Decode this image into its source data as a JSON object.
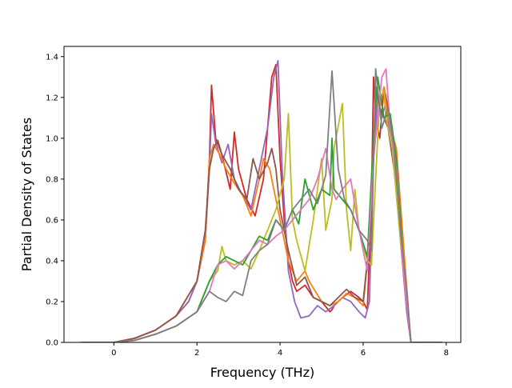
{
  "chart_data": {
    "type": "line",
    "title": "",
    "xlabel": "Frequency (THz)",
    "ylabel": "Partial Density of States",
    "xlim": [
      -1.2,
      8.35
    ],
    "ylim": [
      0.0,
      1.45
    ],
    "xticks": [
      0,
      2,
      4,
      6,
      8
    ],
    "yticks": [
      0.0,
      0.2,
      0.4,
      0.6,
      0.8,
      1.0,
      1.2,
      1.4
    ],
    "xtick_labels": [
      "0",
      "2",
      "4",
      "6",
      "8"
    ],
    "ytick_labels": [
      "0.0",
      "0.2",
      "0.4",
      "0.6",
      "0.8",
      "1.0",
      "1.2",
      "1.4"
    ],
    "grid": false,
    "legend": "none",
    "series": [
      {
        "color": "#d62728",
        "x": [
          -0.8,
          0.0,
          0.5,
          1.0,
          1.5,
          1.8,
          2.0,
          2.2,
          2.3,
          2.35,
          2.45,
          2.6,
          2.8,
          2.9,
          3.0,
          3.2,
          3.4,
          3.6,
          3.8,
          3.85,
          3.9,
          4.0,
          4.1,
          4.2,
          4.3,
          4.4,
          4.6,
          4.8,
          5.0,
          5.2,
          5.25,
          5.3,
          5.5,
          5.7,
          5.9,
          6.0,
          6.1,
          6.2,
          6.25,
          6.3,
          6.4,
          6.5,
          6.6,
          6.7,
          6.9,
          7.05,
          7.15,
          7.3,
          7.9
        ],
        "y": [
          0,
          0,
          0.02,
          0.06,
          0.13,
          0.2,
          0.3,
          0.5,
          0.9,
          1.26,
          1.0,
          0.92,
          0.75,
          1.03,
          0.85,
          0.7,
          0.62,
          0.8,
          1.3,
          1.33,
          1.36,
          0.9,
          0.6,
          0.4,
          0.3,
          0.25,
          0.28,
          0.22,
          0.2,
          0.15,
          0.16,
          0.18,
          0.22,
          0.25,
          0.22,
          0.2,
          0.16,
          0.7,
          1.3,
          1.1,
          1.0,
          1.25,
          1.15,
          1.05,
          0.5,
          0.15,
          0,
          0,
          0
        ]
      },
      {
        "color": "#9467bd",
        "x": [
          -0.8,
          0.0,
          0.5,
          1.0,
          1.5,
          1.8,
          2.0,
          2.2,
          2.3,
          2.35,
          2.45,
          2.6,
          2.75,
          2.9,
          3.1,
          3.3,
          3.5,
          3.7,
          3.85,
          3.95,
          4.05,
          4.2,
          4.35,
          4.5,
          4.7,
          4.9,
          5.1,
          5.3,
          5.5,
          5.7,
          5.9,
          6.05,
          6.15,
          6.25,
          6.35,
          6.45,
          6.55,
          6.65,
          6.8,
          6.95,
          7.05,
          7.15,
          7.3,
          7.9
        ],
        "y": [
          0,
          0,
          0.02,
          0.06,
          0.13,
          0.2,
          0.3,
          0.5,
          0.85,
          1.12,
          0.98,
          0.88,
          0.97,
          0.8,
          0.72,
          0.65,
          0.85,
          1.05,
          1.3,
          1.38,
          0.85,
          0.35,
          0.2,
          0.12,
          0.13,
          0.18,
          0.15,
          0.18,
          0.22,
          0.2,
          0.15,
          0.12,
          0.2,
          0.9,
          1.2,
          1.1,
          1.18,
          1.0,
          0.8,
          0.4,
          0.15,
          0,
          0,
          0
        ]
      },
      {
        "color": "#ff7f0e",
        "x": [
          -0.8,
          0.0,
          0.5,
          1.0,
          1.5,
          2.0,
          2.2,
          2.3,
          2.4,
          2.55,
          2.7,
          2.9,
          3.1,
          3.3,
          3.5,
          3.6,
          3.75,
          3.9,
          4.0,
          4.2,
          4.4,
          4.6,
          4.7,
          4.85,
          5.0,
          5.2,
          5.4,
          5.6,
          5.8,
          6.0,
          6.2,
          6.3,
          6.4,
          6.5,
          6.6,
          6.8,
          7.0,
          7.15,
          7.3,
          7.9
        ],
        "y": [
          0,
          0,
          0.02,
          0.06,
          0.13,
          0.3,
          0.5,
          0.9,
          0.97,
          0.92,
          0.85,
          0.78,
          0.72,
          0.62,
          0.8,
          0.9,
          0.85,
          0.7,
          0.6,
          0.4,
          0.3,
          0.35,
          0.3,
          0.25,
          0.2,
          0.18,
          0.2,
          0.24,
          0.22,
          0.18,
          0.6,
          1.2,
          1.15,
          1.25,
          1.1,
          0.95,
          0.4,
          0,
          0,
          0
        ]
      },
      {
        "color": "#8c564b",
        "x": [
          -0.8,
          0.0,
          0.5,
          1.0,
          1.5,
          2.0,
          2.2,
          2.3,
          2.4,
          2.5,
          2.6,
          2.8,
          3.0,
          3.2,
          3.35,
          3.5,
          3.7,
          3.8,
          3.9,
          4.0,
          4.2,
          4.4,
          4.6,
          4.8,
          5.0,
          5.2,
          5.4,
          5.6,
          5.8,
          6.0,
          6.2,
          6.3,
          6.4,
          6.6,
          6.75,
          6.9,
          7.05,
          7.15,
          7.3,
          7.9
        ],
        "y": [
          0,
          0,
          0.02,
          0.06,
          0.13,
          0.3,
          0.55,
          0.85,
          0.95,
          0.99,
          0.92,
          0.85,
          0.75,
          0.7,
          0.9,
          0.8,
          0.88,
          0.95,
          0.85,
          0.65,
          0.45,
          0.28,
          0.32,
          0.22,
          0.2,
          0.18,
          0.22,
          0.26,
          0.22,
          0.2,
          0.6,
          1.25,
          1.15,
          1.05,
          0.84,
          0.5,
          0.2,
          0,
          0,
          0
        ]
      },
      {
        "color": "#bcbd22",
        "x": [
          -0.8,
          0.0,
          0.5,
          1.0,
          1.5,
          2.0,
          2.3,
          2.5,
          2.6,
          2.7,
          2.9,
          3.1,
          3.3,
          3.5,
          3.7,
          3.9,
          4.1,
          4.2,
          4.3,
          4.4,
          4.6,
          4.8,
          5.0,
          5.1,
          5.2,
          5.25,
          5.3,
          5.5,
          5.6,
          5.7,
          5.8,
          5.9,
          6.1,
          6.2,
          6.3,
          6.4,
          6.5,
          6.55,
          6.7,
          6.9,
          7.05,
          7.15,
          7.3,
          7.9
        ],
        "y": [
          0,
          0,
          0.01,
          0.04,
          0.08,
          0.15,
          0.3,
          0.35,
          0.47,
          0.4,
          0.38,
          0.4,
          0.36,
          0.45,
          0.55,
          0.65,
          0.8,
          1.12,
          0.6,
          0.5,
          0.35,
          0.6,
          0.9,
          0.55,
          0.65,
          0.7,
          0.95,
          1.17,
          0.65,
          0.45,
          0.75,
          0.55,
          0.4,
          0.38,
          0.8,
          1.2,
          1.23,
          1.1,
          0.95,
          0.5,
          0.2,
          0,
          0,
          0
        ]
      },
      {
        "color": "#2ca02c",
        "x": [
          -0.8,
          0.0,
          0.5,
          1.0,
          1.5,
          2.0,
          2.3,
          2.5,
          2.7,
          2.9,
          3.1,
          3.3,
          3.5,
          3.7,
          3.9,
          4.1,
          4.3,
          4.45,
          4.6,
          4.8,
          5.0,
          5.2,
          5.25,
          5.3,
          5.5,
          5.7,
          5.9,
          6.1,
          6.25,
          6.35,
          6.5,
          6.65,
          6.8,
          6.95,
          7.05,
          7.15,
          7.3,
          7.9
        ],
        "y": [
          0,
          0,
          0.01,
          0.04,
          0.08,
          0.15,
          0.3,
          0.38,
          0.42,
          0.4,
          0.38,
          0.45,
          0.52,
          0.5,
          0.6,
          0.55,
          0.65,
          0.58,
          0.8,
          0.65,
          0.75,
          0.72,
          1.0,
          0.75,
          0.7,
          0.65,
          0.55,
          0.42,
          1.0,
          1.3,
          1.1,
          1.12,
          0.9,
          0.45,
          0.2,
          0,
          0,
          0
        ]
      },
      {
        "color": "#e377c2",
        "x": [
          -0.8,
          0.0,
          0.5,
          1.0,
          1.5,
          2.0,
          2.3,
          2.5,
          2.7,
          2.9,
          3.1,
          3.3,
          3.5,
          3.7,
          3.9,
          4.1,
          4.3,
          4.5,
          4.7,
          4.9,
          5.1,
          5.25,
          5.35,
          5.5,
          5.7,
          5.9,
          6.1,
          6.25,
          6.35,
          6.45,
          6.55,
          6.65,
          6.8,
          6.95,
          7.05,
          7.15,
          7.3,
          7.9
        ],
        "y": [
          0,
          0,
          0.01,
          0.04,
          0.08,
          0.15,
          0.25,
          0.38,
          0.4,
          0.36,
          0.4,
          0.45,
          0.5,
          0.48,
          0.52,
          0.55,
          0.6,
          0.65,
          0.7,
          0.8,
          0.95,
          0.75,
          0.7,
          0.75,
          0.8,
          0.55,
          0.35,
          0.9,
          1.1,
          1.3,
          1.34,
          1.05,
          0.85,
          0.4,
          0.18,
          0,
          0,
          0
        ]
      },
      {
        "color": "#7f7f7f",
        "x": [
          -0.8,
          0.0,
          0.5,
          1.0,
          1.5,
          2.0,
          2.3,
          2.5,
          2.7,
          2.9,
          3.1,
          3.3,
          3.5,
          3.7,
          3.9,
          4.1,
          4.3,
          4.5,
          4.7,
          4.9,
          5.1,
          5.25,
          5.4,
          5.55,
          5.7,
          5.9,
          6.1,
          6.2,
          6.3,
          6.45,
          6.6,
          6.75,
          6.9,
          7.05,
          7.15,
          7.3,
          7.9
        ],
        "y": [
          0,
          0,
          0.01,
          0.04,
          0.08,
          0.15,
          0.25,
          0.22,
          0.2,
          0.25,
          0.23,
          0.4,
          0.45,
          0.48,
          0.6,
          0.55,
          0.65,
          0.7,
          0.75,
          0.68,
          0.82,
          1.33,
          0.85,
          0.7,
          0.65,
          0.55,
          0.5,
          0.45,
          1.34,
          1.05,
          1.15,
          0.95,
          0.55,
          0.25,
          0,
          0,
          0
        ]
      }
    ]
  }
}
